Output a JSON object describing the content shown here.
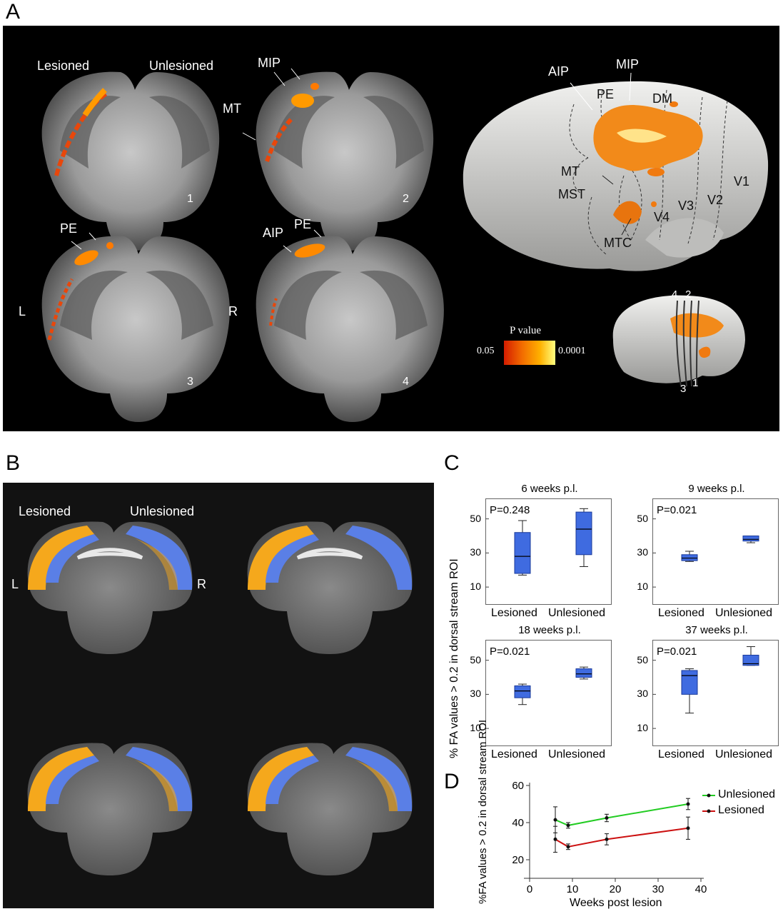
{
  "panels": {
    "a": "A",
    "b": "B",
    "c": "C",
    "d": "D"
  },
  "panel_a": {
    "lesioned_label": "Lesioned",
    "unlesioned_label": "Unlesioned",
    "slice_labels": [
      "1",
      "2",
      "3",
      "4"
    ],
    "region_labels_slice2": [
      "MIP",
      "MT"
    ],
    "region_labels_slice3": [
      "PE"
    ],
    "region_labels_slice4": [
      "AIP",
      "PE"
    ],
    "hemisphere_left": "L",
    "hemisphere_right": "R",
    "surface_labels": [
      "AIP",
      "MIP",
      "PE",
      "DM",
      "MT",
      "MST",
      "V1",
      "V2",
      "V3",
      "V4",
      "MTC"
    ],
    "colorbar": {
      "title": "P value",
      "min_label": "0.05",
      "max_label": "0.0001",
      "colors": [
        "#d41c00",
        "#f26b00",
        "#ffb000",
        "#ffff80"
      ]
    },
    "small_brain_labels": {
      "top": [
        "4",
        "2"
      ],
      "bottom": [
        "3",
        "1"
      ]
    }
  },
  "panel_b": {
    "lesioned_label": "Lesioned",
    "unlesioned_label": "Unlesioned",
    "hemisphere_left": "L",
    "hemisphere_right": "R",
    "colors": {
      "blue": "#5a7fe6",
      "orange": "#f5a81c"
    }
  },
  "chart_data": [
    {
      "type": "box",
      "title": "6 weeks p.l.",
      "annotation": "P=0.248",
      "categories": [
        "Lesioned",
        "Unlesioned"
      ],
      "ylabel": "% FA values > 0.2 in dorsal stream ROI",
      "yticks": [
        10,
        30,
        50
      ],
      "ylim": [
        0,
        62
      ],
      "boxes": [
        {
          "min": 17,
          "q1": 18,
          "median": 28,
          "q3": 42,
          "max": 49
        },
        {
          "min": 22,
          "q1": 29,
          "median": 44,
          "q3": 54,
          "max": 56
        }
      ]
    },
    {
      "type": "box",
      "title": "9 weeks p.l.",
      "annotation": "P=0.021",
      "categories": [
        "Lesioned",
        "Unlesioned"
      ],
      "yticks": [
        10,
        30,
        50
      ],
      "ylim": [
        0,
        62
      ],
      "boxes": [
        {
          "min": 25,
          "q1": 25.5,
          "median": 27,
          "q3": 29,
          "max": 31
        },
        {
          "min": 36,
          "q1": 37,
          "median": 38,
          "q3": 40,
          "max": 40
        }
      ]
    },
    {
      "type": "box",
      "title": "18 weeks p.l.",
      "annotation": "P=0.021",
      "categories": [
        "Lesioned",
        "Unlesioned"
      ],
      "yticks": [
        10,
        30,
        50
      ],
      "ylim": [
        0,
        62
      ],
      "boxes": [
        {
          "min": 24,
          "q1": 28,
          "median": 32,
          "q3": 35,
          "max": 36
        },
        {
          "min": 39,
          "q1": 40,
          "median": 42,
          "q3": 45,
          "max": 46
        }
      ]
    },
    {
      "type": "box",
      "title": "37 weeks p.l.",
      "annotation": "P=0.021",
      "categories": [
        "Lesioned",
        "Unlesioned"
      ],
      "yticks": [
        10,
        30,
        50
      ],
      "ylim": [
        0,
        62
      ],
      "boxes": [
        {
          "min": 19,
          "q1": 30,
          "median": 41,
          "q3": 44,
          "max": 45
        },
        {
          "min": 47,
          "q1": 47,
          "median": 48,
          "q3": 53,
          "max": 58
        }
      ]
    },
    {
      "type": "line",
      "xlabel": "Weeks post lesion",
      "ylabel": "%FA values > 0.2 in dorsal stream ROI",
      "xlim": [
        0,
        40
      ],
      "ylim": [
        10,
        60
      ],
      "xticks": [
        0,
        10,
        20,
        30,
        40
      ],
      "yticks": [
        20,
        40,
        60
      ],
      "series": [
        {
          "name": "Unlesioned",
          "color": "#22cc22",
          "x": [
            6,
            9,
            18,
            37
          ],
          "y": [
            41.5,
            38.5,
            42.5,
            50
          ],
          "err": [
            7,
            1.5,
            2,
            3
          ]
        },
        {
          "name": "Lesioned",
          "color": "#cc1111",
          "x": [
            6,
            9,
            18,
            37
          ],
          "y": [
            31,
            27,
            31,
            37
          ],
          "err": [
            7,
            1.5,
            3,
            6
          ]
        }
      ]
    }
  ]
}
